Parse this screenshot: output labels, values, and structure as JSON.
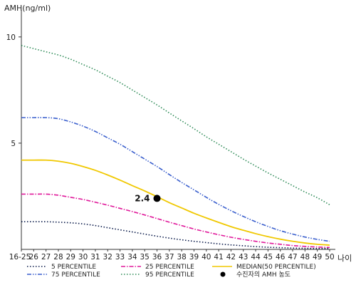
{
  "chart_data": {
    "type": "line",
    "title": "",
    "ylabel": "AMH(ng/ml)",
    "xlabel": "나이",
    "ylim": [
      0,
      11
    ],
    "yticks": [
      5,
      10
    ],
    "x": [
      "16-25",
      "26",
      "27",
      "28",
      "29",
      "30",
      "31",
      "32",
      "33",
      "34",
      "35",
      "36",
      "37",
      "38",
      "39",
      "40",
      "41",
      "42",
      "43",
      "44",
      "45",
      "46",
      "47",
      "48",
      "49",
      "50"
    ],
    "grid": false,
    "legend_position": "bottom",
    "series": [
      {
        "name": "5 PERCENTILE",
        "color": "#0a1a4a",
        "dash": "dotted",
        "values": [
          1.3,
          1.3,
          1.3,
          1.28,
          1.25,
          1.2,
          1.12,
          1.02,
          0.92,
          0.82,
          0.72,
          0.62,
          0.53,
          0.45,
          0.38,
          0.32,
          0.26,
          0.21,
          0.17,
          0.13,
          0.1,
          0.08,
          0.06,
          0.05,
          0.04,
          0.04
        ]
      },
      {
        "name": "25 PERCENTILE",
        "color": "#e0189a",
        "dash": "dashdot",
        "values": [
          2.6,
          2.6,
          2.6,
          2.55,
          2.45,
          2.35,
          2.22,
          2.08,
          1.93,
          1.78,
          1.62,
          1.45,
          1.28,
          1.12,
          0.96,
          0.82,
          0.69,
          0.57,
          0.47,
          0.38,
          0.3,
          0.24,
          0.18,
          0.14,
          0.11,
          0.09
        ]
      },
      {
        "name": "MEDIAN(50 PERCENTILE)",
        "color": "#f0c800",
        "dash": "solid",
        "values": [
          4.2,
          4.2,
          4.2,
          4.15,
          4.05,
          3.9,
          3.72,
          3.5,
          3.26,
          3.0,
          2.75,
          2.48,
          2.2,
          1.95,
          1.7,
          1.48,
          1.27,
          1.07,
          0.9,
          0.74,
          0.6,
          0.48,
          0.38,
          0.3,
          0.24,
          0.2
        ]
      },
      {
        "name": "75 PERCENTILE",
        "color": "#3a5fcd",
        "dash": "dashdotdot",
        "values": [
          6.2,
          6.2,
          6.2,
          6.15,
          6.0,
          5.8,
          5.55,
          5.25,
          4.95,
          4.6,
          4.25,
          3.9,
          3.52,
          3.15,
          2.8,
          2.45,
          2.12,
          1.82,
          1.55,
          1.3,
          1.08,
          0.88,
          0.72,
          0.58,
          0.47,
          0.38
        ]
      },
      {
        "name": "95 PERCENTILE",
        "color": "#2e8b57",
        "dash": "dotted",
        "values": [
          9.6,
          9.45,
          9.3,
          9.15,
          8.95,
          8.7,
          8.45,
          8.15,
          7.85,
          7.5,
          7.15,
          6.8,
          6.42,
          6.05,
          5.68,
          5.3,
          4.95,
          4.6,
          4.25,
          3.92,
          3.6,
          3.3,
          3.0,
          2.7,
          2.43,
          2.1
        ]
      }
    ],
    "marker": {
      "label": "수진자의 AMH 농도",
      "x": "36",
      "y": 2.4,
      "value_label": "2.4",
      "color": "#000000"
    }
  }
}
